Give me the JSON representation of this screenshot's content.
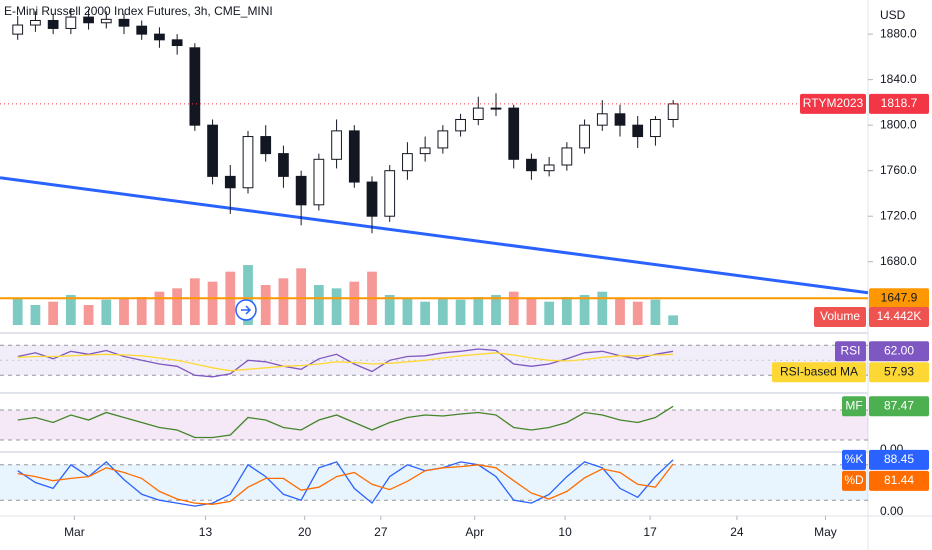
{
  "chart_data": {
    "type": "candlestick",
    "title": "E-Mini Russell 2000 Index Futures, 3h, CME_MINI",
    "currency": "USD",
    "symbol": "RTYM2023",
    "candle_color": "#131722",
    "up_fill": "#ffffff",
    "x": [
      0,
      1,
      2,
      3,
      4,
      5,
      6,
      7,
      8,
      9,
      10,
      11,
      12,
      13,
      14,
      15,
      16,
      17,
      18,
      19,
      20,
      21,
      22,
      23,
      24,
      25,
      26,
      27,
      28,
      29,
      30,
      31,
      32,
      33,
      34,
      35,
      36,
      37
    ],
    "xlim": [
      -1,
      48
    ],
    "xticks": [
      {
        "value": 3.2,
        "label": "Mar"
      },
      {
        "value": 10.6,
        "label": "13"
      },
      {
        "value": 16.2,
        "label": "20"
      },
      {
        "value": 20.5,
        "label": "27"
      },
      {
        "value": 25.8,
        "label": "Apr"
      },
      {
        "value": 30.9,
        "label": "10"
      },
      {
        "value": 35.7,
        "label": "17"
      },
      {
        "value": 40.6,
        "label": "24"
      },
      {
        "value": 45.6,
        "label": "May"
      }
    ],
    "ylim": [
      1620,
      1910
    ],
    "yticks": [
      {
        "value": 1680,
        "label": "1680.0"
      },
      {
        "value": 1720,
        "label": "1720.0"
      },
      {
        "value": 1760,
        "label": "1760.0"
      },
      {
        "value": 1800,
        "label": "1800.0"
      },
      {
        "value": 1840,
        "label": "1840.0"
      },
      {
        "value": 1880,
        "label": "1880.0"
      }
    ],
    "open": [
      1880,
      1888,
      1892,
      1885,
      1895,
      1890,
      1893,
      1887,
      1880,
      1875,
      1868,
      1800,
      1755,
      1745,
      1790,
      1775,
      1755,
      1730,
      1770,
      1795,
      1750,
      1720,
      1760,
      1775,
      1780,
      1795,
      1805,
      1815,
      1815,
      1770,
      1760,
      1765,
      1780,
      1800,
      1810,
      1800,
      1790,
      1805
    ],
    "high": [
      1896,
      1900,
      1898,
      1903,
      1902,
      1900,
      1898,
      1892,
      1886,
      1880,
      1872,
      1805,
      1765,
      1795,
      1800,
      1782,
      1760,
      1775,
      1805,
      1800,
      1755,
      1765,
      1785,
      1790,
      1800,
      1810,
      1825,
      1828,
      1818,
      1775,
      1772,
      1785,
      1805,
      1822,
      1818,
      1808,
      1808,
      1822
    ],
    "low": [
      1875,
      1882,
      1880,
      1880,
      1884,
      1885,
      1880,
      1875,
      1868,
      1862,
      1795,
      1748,
      1722,
      1740,
      1768,
      1745,
      1712,
      1725,
      1762,
      1745,
      1705,
      1715,
      1752,
      1768,
      1775,
      1790,
      1800,
      1808,
      1762,
      1752,
      1755,
      1760,
      1775,
      1795,
      1790,
      1780,
      1782,
      1798
    ],
    "close": [
      1888,
      1892,
      1885,
      1895,
      1890,
      1893,
      1887,
      1880,
      1875,
      1870,
      1800,
      1755,
      1745,
      1790,
      1775,
      1755,
      1730,
      1770,
      1795,
      1750,
      1720,
      1760,
      1775,
      1780,
      1795,
      1805,
      1815,
      1815,
      1770,
      1760,
      1765,
      1780,
      1800,
      1810,
      1800,
      1790,
      1805,
      1818.7
    ],
    "price_color": "#f23645",
    "volume": {
      "name": "Volume",
      "up_color": "#26a69a",
      "down_color": "#ef5350",
      "ylim": [
        0,
        120
      ],
      "values": [
        40,
        30,
        35,
        45,
        30,
        38,
        40,
        42,
        50,
        55,
        70,
        65,
        80,
        90,
        60,
        70,
        85,
        60,
        55,
        65,
        80,
        45,
        40,
        35,
        40,
        38,
        42,
        45,
        50,
        40,
        35,
        42,
        45,
        50,
        40,
        35,
        38,
        14.442
      ],
      "last_label": "14.442K"
    },
    "trendline": {
      "color": "#2962ff",
      "x": [
        -1,
        48
      ],
      "y": [
        1753.8,
        1652.7
      ]
    },
    "hline": {
      "value": 1647.9,
      "color": "#ff9800"
    },
    "panes": [
      {
        "ylim": [
          17,
          77
        ],
        "band": [
          30,
          70
        ],
        "mid": 50,
        "band_color": "#7e57c2",
        "series": [
          {
            "name": "RSI",
            "color": "#7e57c2",
            "text_color": "#ffffff",
            "last_label": "62.00",
            "values": [
              55,
              60,
              52,
              62,
              58,
              63,
              55,
              50,
              45,
              42,
              30,
              28,
              32,
              50,
              48,
              42,
              38,
              52,
              58,
              45,
              35,
              50,
              55,
              56,
              60,
              62,
              65,
              63,
              45,
              42,
              45,
              52,
              60,
              62,
              56,
              52,
              58,
              62
            ]
          },
          {
            "name": "RSI-based MA",
            "color": "#fdd835",
            "text_color": "#131722",
            "last_label": "57.93",
            "values": [
              54,
              55,
              55,
              56,
              57,
              58,
              57,
              56,
              53,
              50,
              45,
              40,
              36,
              38,
              40,
              42,
              43,
              45,
              48,
              47,
              45,
              46,
              48,
              50,
              53,
              56,
              58,
              60,
              57,
              53,
              50,
              49,
              51,
              54,
              56,
              56,
              57,
              57.93
            ]
          }
        ]
      },
      {
        "ylim": [
          0,
          100
        ],
        "band": [
          20,
          80
        ],
        "band_color": "#9c27b0",
        "yticks": [
          {
            "value": 0,
            "label": "0.00"
          }
        ],
        "series": [
          {
            "name": "MF",
            "color": "#4caf50",
            "line_color": "#43862a",
            "text_color": "#ffffff",
            "last_label": "87.47",
            "values": [
              60,
              65,
              55,
              70,
              60,
              75,
              65,
              55,
              45,
              40,
              25,
              25,
              30,
              65,
              60,
              45,
              40,
              60,
              70,
              55,
              40,
              55,
              65,
              70,
              68,
              72,
              75,
              70,
              45,
              40,
              45,
              55,
              75,
              70,
              60,
              55,
              65,
              87.47
            ]
          }
        ]
      },
      {
        "ylim": [
          0,
          100
        ],
        "band": [
          20,
          80
        ],
        "band_color": "#2196f3",
        "yticks": [
          {
            "value": 0,
            "label": "0.00"
          }
        ],
        "series": [
          {
            "name": "%K",
            "color": "#2962ff",
            "text_color": "#ffffff",
            "last_label": "88.45",
            "values": [
              70,
              50,
              40,
              80,
              60,
              85,
              55,
              30,
              20,
              15,
              10,
              15,
              30,
              80,
              60,
              30,
              20,
              75,
              85,
              40,
              15,
              60,
              80,
              70,
              75,
              85,
              80,
              60,
              20,
              15,
              30,
              60,
              85,
              75,
              40,
              25,
              60,
              88.45
            ]
          },
          {
            "name": "%D",
            "color": "#ff6d00",
            "text_color": "#ffffff",
            "last_label": "81.44",
            "values": [
              65,
              60,
              53,
              57,
              60,
              75,
              67,
              57,
              35,
              22,
              15,
              13,
              18,
              42,
              57,
              57,
              37,
              42,
              60,
              67,
              47,
              38,
              52,
              70,
              75,
              77,
              80,
              75,
              53,
              32,
              22,
              35,
              58,
              73,
              67,
              47,
              42,
              81.44
            ]
          }
        ]
      }
    ]
  }
}
